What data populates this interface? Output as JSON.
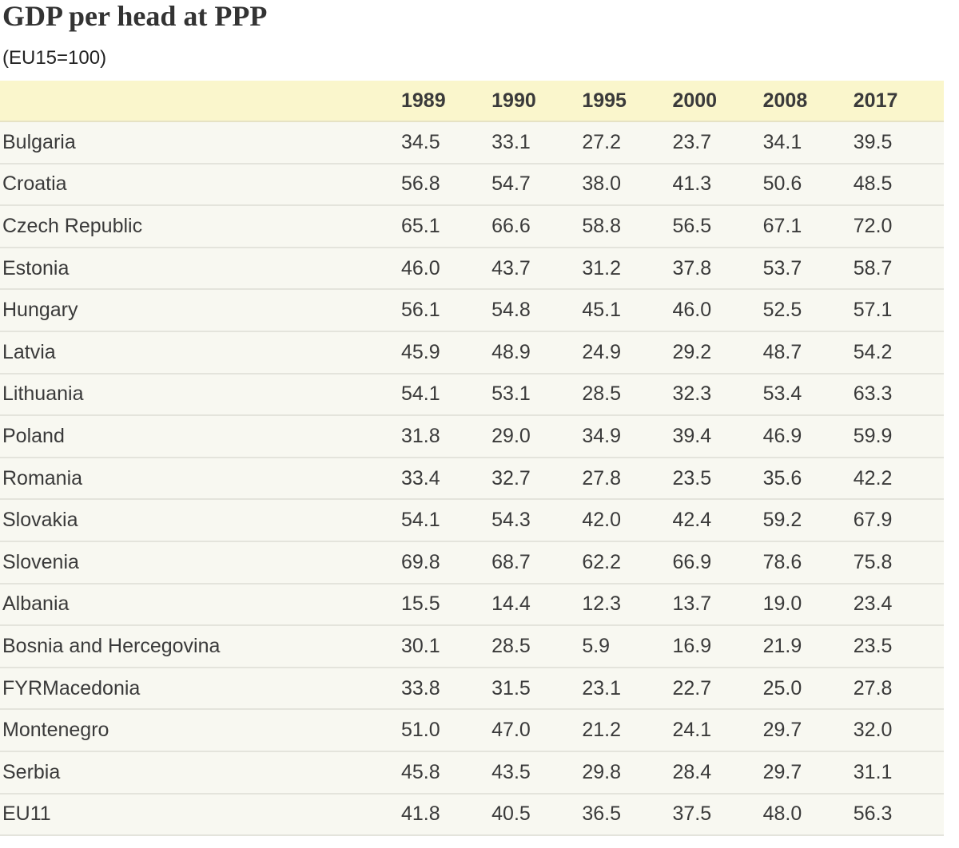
{
  "chart_data": {
    "type": "table",
    "title": "GDP per head at PPP",
    "subtitle": "(EU15=100)",
    "columns": [
      "",
      "1989",
      "1990",
      "1995",
      "2000",
      "2008",
      "2017"
    ],
    "rows": [
      {
        "label": "Bulgaria",
        "values": [
          "34.5",
          "33.1",
          "27.2",
          "23.7",
          "34.1",
          "39.5"
        ]
      },
      {
        "label": "Croatia",
        "values": [
          "56.8",
          "54.7",
          "38.0",
          "41.3",
          "50.6",
          "48.5"
        ]
      },
      {
        "label": "Czech Republic",
        "values": [
          "65.1",
          "66.6",
          "58.8",
          "56.5",
          "67.1",
          "72.0"
        ]
      },
      {
        "label": "Estonia",
        "values": [
          "46.0",
          "43.7",
          "31.2",
          "37.8",
          "53.7",
          "58.7"
        ]
      },
      {
        "label": "Hungary",
        "values": [
          "56.1",
          "54.8",
          "45.1",
          "46.0",
          "52.5",
          "57.1"
        ]
      },
      {
        "label": "Latvia",
        "values": [
          "45.9",
          "48.9",
          "24.9",
          "29.2",
          "48.7",
          "54.2"
        ]
      },
      {
        "label": "Lithuania",
        "values": [
          "54.1",
          "53.1",
          "28.5",
          "32.3",
          "53.4",
          "63.3"
        ]
      },
      {
        "label": "Poland",
        "values": [
          "31.8",
          "29.0",
          "34.9",
          "39.4",
          "46.9",
          "59.9"
        ]
      },
      {
        "label": "Romania",
        "values": [
          "33.4",
          "32.7",
          "27.8",
          "23.5",
          "35.6",
          "42.2"
        ]
      },
      {
        "label": "Slovakia",
        "values": [
          "54.1",
          "54.3",
          "42.0",
          "42.4",
          "59.2",
          "67.9"
        ]
      },
      {
        "label": "Slovenia",
        "values": [
          "69.8",
          "68.7",
          "62.2",
          "66.9",
          "78.6",
          "75.8"
        ]
      },
      {
        "label": "Albania",
        "values": [
          "15.5",
          "14.4",
          "12.3",
          "13.7",
          "19.0",
          "23.4"
        ]
      },
      {
        "label": "Bosnia and Hercegovina",
        "values": [
          "30.1",
          "28.5",
          "5.9",
          "16.9",
          "21.9",
          "23.5"
        ]
      },
      {
        "label": "FYRMacedonia",
        "values": [
          "33.8",
          "31.5",
          "23.1",
          "22.7",
          "25.0",
          "27.8"
        ]
      },
      {
        "label": "Montenegro",
        "values": [
          "51.0",
          "47.0",
          "21.2",
          "24.1",
          "29.7",
          "32.0"
        ]
      },
      {
        "label": "Serbia",
        "values": [
          "45.8",
          "43.5",
          "29.8",
          "28.4",
          "29.7",
          "31.1"
        ]
      },
      {
        "label": "EU11",
        "values": [
          "41.8",
          "40.5",
          "36.5",
          "37.5",
          "48.0",
          "56.3"
        ]
      }
    ],
    "colors": {
      "header_background": "#faf6cc",
      "row_background": "#f8f8f1",
      "row_border": "#e4e4dc",
      "text": "#3a3a3a"
    }
  }
}
